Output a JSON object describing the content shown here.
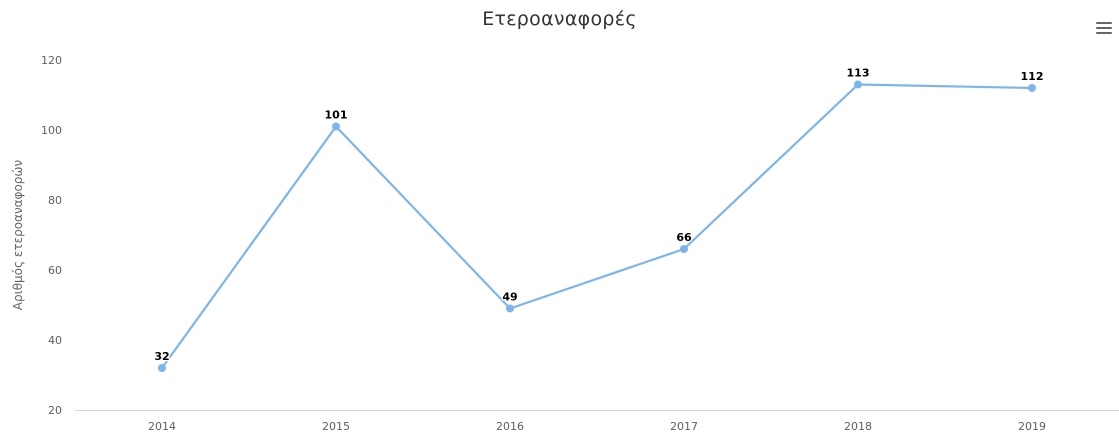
{
  "chart_data": {
    "type": "line",
    "title": "Ετεροαναφορές",
    "ylabel": "Αριθμός ετεροαναφορών",
    "xlabel": "",
    "categories": [
      "2014",
      "2015",
      "2016",
      "2017",
      "2018",
      "2019"
    ],
    "series": [
      {
        "values": [
          32,
          101,
          49,
          66,
          113,
          112
        ],
        "color": "#7cb5ec"
      }
    ],
    "ylim": [
      20,
      120
    ],
    "yticks": [
      20,
      40,
      60,
      80,
      100,
      120
    ],
    "data_labels": true,
    "grid": false,
    "legend": "none"
  },
  "menu_icon": "hamburger-menu-icon"
}
